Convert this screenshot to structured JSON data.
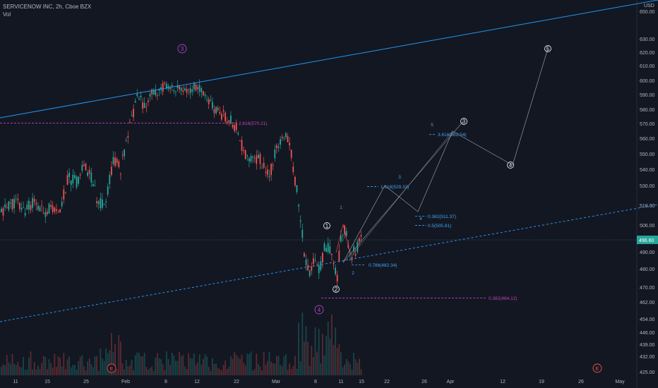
{
  "header": {
    "title": "SERVICENOW INC, 2h, Cboe BZX",
    "volume_label": "Vol"
  },
  "currency": "USD",
  "colors": {
    "background": "#131722",
    "up": "#26a69a",
    "down": "#ef5350",
    "trend": "#2196f3",
    "fib_blue": "#42a5f5",
    "fib_magenta": "#c042c0",
    "projection": "#9598a1",
    "price_label_bg": "#26a69a",
    "wave_white": "#e0e3eb",
    "wave_purple": "#ab47bc",
    "earnings": "#ef5350"
  },
  "chart_data": {
    "type": "candlestick",
    "x_ticks": [
      "11",
      "15",
      "25",
      "Feb",
      "8",
      "12",
      "22",
      "Mar",
      "8",
      "11",
      "15",
      "22",
      "26",
      "Apr",
      "12",
      "19",
      "26",
      "May"
    ],
    "y_ticks": [
      "650.00",
      "630.00",
      "620.00",
      "610.00",
      "600.00",
      "590.00",
      "580.00",
      "570.00",
      "560.00",
      "550.00",
      "540.00",
      "530.00",
      "518.00",
      "506.00",
      "496.60",
      "490.00",
      "480.00",
      "470.00",
      "462.00",
      "454.00",
      "446.00",
      "439.00",
      "432.00",
      "425.00"
    ],
    "current_price": "496.60",
    "fib_levels": [
      {
        "label": "2.618(570.21)",
        "price": 570.21,
        "color": "magenta"
      },
      {
        "label": "3.618(562.54)",
        "price": 562.54,
        "color": "blue"
      },
      {
        "label": "1.618(529.32)",
        "price": 529.32,
        "color": "blue"
      },
      {
        "label": "0.382(511.37)",
        "price": 511.37,
        "color": "blue"
      },
      {
        "label": "0.5(505.81)",
        "price": 505.81,
        "color": "blue"
      },
      {
        "label": "0.786(482.34)",
        "price": 482.34,
        "color": "blue"
      },
      {
        "label": "0.382(464.12)",
        "price": 464.12,
        "color": "magenta"
      }
    ],
    "wave_labels_major": [
      "3",
      "4"
    ],
    "wave_labels_circled": [
      "1",
      "2",
      "3",
      "4",
      "5"
    ],
    "wave_labels_minor": [
      "1",
      "2",
      "3",
      "4",
      "5"
    ],
    "earnings_markers": [
      "E",
      "E"
    ]
  }
}
